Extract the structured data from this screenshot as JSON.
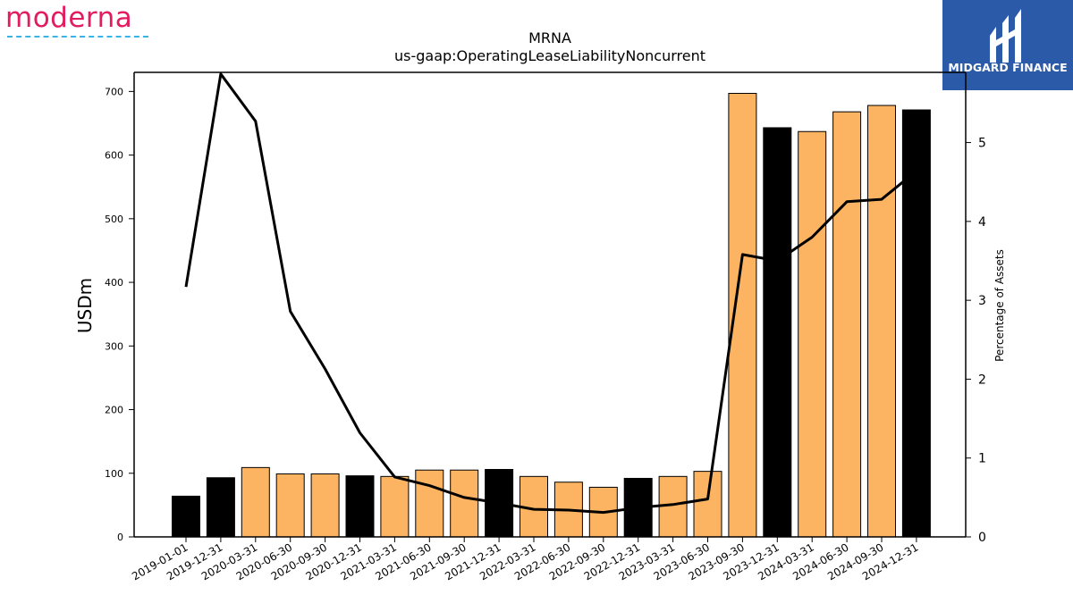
{
  "brand": {
    "left_logo_text": "moderna",
    "right_logo_text": "MIDGARD FINANCE",
    "right_logo_bg": "#2b5aa8",
    "left_logo_color": "#e31c5f",
    "left_logo_line_color": "#3ab4e6"
  },
  "chart_data": {
    "type": "bar",
    "title": "MRNA",
    "subtitle": "us-gaap:OperatingLeaseLiabilityNoncurrent",
    "ylabel": "USDm",
    "y2label": "Percentage of Assets",
    "ylim": [
      0,
      730
    ],
    "y2lim": [
      0,
      5.89
    ],
    "yticks": [
      0,
      100,
      200,
      300,
      400,
      500,
      600,
      700
    ],
    "y2ticks": [
      0,
      1,
      2,
      3,
      4,
      5
    ],
    "grid": false,
    "categories": [
      "2019-01-01",
      "2019-12-31",
      "2020-03-31",
      "2020-06-30",
      "2020-09-30",
      "2020-12-31",
      "2021-03-31",
      "2021-06-30",
      "2021-09-30",
      "2021-12-31",
      "2022-03-31",
      "2022-06-30",
      "2022-09-30",
      "2022-12-31",
      "2023-03-31",
      "2023-06-30",
      "2023-09-30",
      "2023-12-31",
      "2024-03-31",
      "2024-06-30",
      "2024-09-30",
      "2024-12-31"
    ],
    "series": [
      {
        "type": "bar",
        "axis": "left",
        "values": [
          64,
          93,
          109,
          99,
          99,
          96,
          95,
          105,
          105,
          106,
          95,
          86,
          78,
          92,
          95,
          103,
          697,
          643,
          637,
          668,
          678,
          671
        ],
        "colors": [
          "#000000",
          "#000000",
          "#fdb462",
          "#fdb462",
          "#fdb462",
          "#000000",
          "#fdb462",
          "#fdb462",
          "#fdb462",
          "#000000",
          "#fdb462",
          "#fdb462",
          "#fdb462",
          "#000000",
          "#fdb462",
          "#fdb462",
          "#fdb462",
          "#000000",
          "#fdb462",
          "#fdb462",
          "#fdb462",
          "#000000"
        ]
      },
      {
        "type": "line",
        "axis": "right",
        "color": "#000000",
        "values": [
          3.17,
          5.87,
          5.27,
          2.86,
          2.13,
          1.32,
          0.76,
          0.65,
          0.5,
          0.43,
          0.35,
          0.34,
          0.31,
          0.37,
          0.41,
          0.48,
          3.58,
          3.5,
          3.8,
          4.25,
          4.28,
          4.64
        ]
      }
    ]
  }
}
